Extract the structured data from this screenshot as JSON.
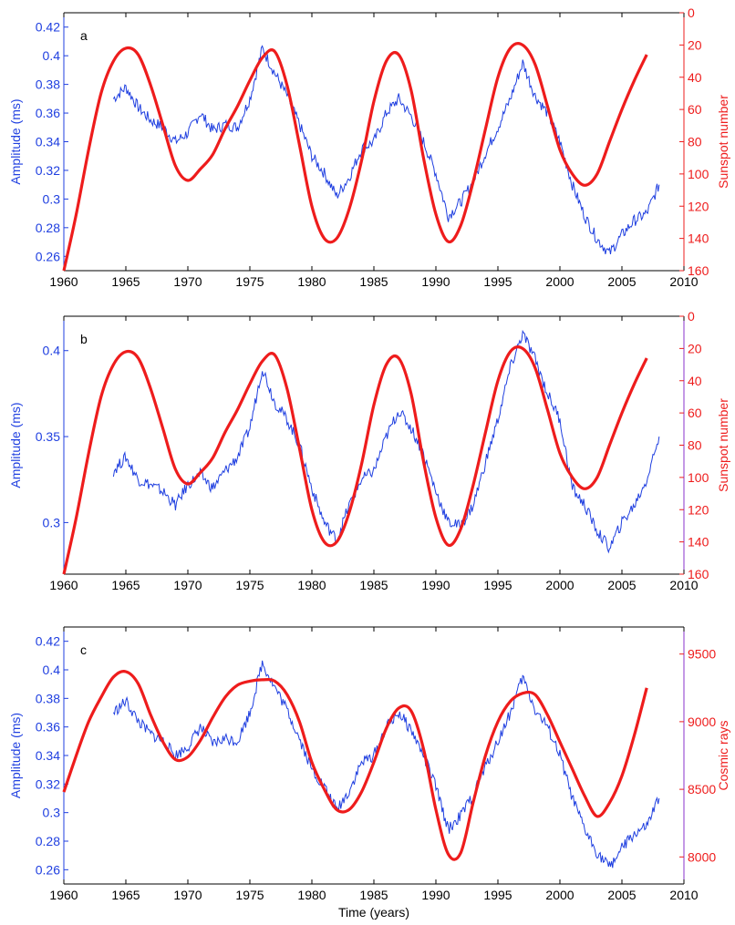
{
  "colors": {
    "blue": "#1f3fe0",
    "red": "#ee1c1c",
    "axis": "#000000",
    "purple": "#8833cc"
  },
  "chart_data": [
    {
      "type": "line",
      "panel_label": "a",
      "xlabel": "",
      "ylabel_left": "Amplitude (ms)",
      "ylabel_right": "Sunspot number",
      "xlim": [
        1960,
        2010
      ],
      "ylim_left": [
        0.25,
        0.43
      ],
      "ylim_right_reversed": [
        0,
        160
      ],
      "x_ticks": [
        "1960",
        "1965",
        "1970",
        "1975",
        "1980",
        "1985",
        "1990",
        "1995",
        "2000",
        "2005",
        "2010"
      ],
      "y_ticks_left": [
        "0.26",
        "0.28",
        "0.3",
        "0.32",
        "0.34",
        "0.36",
        "0.38",
        "0.4",
        "0.42"
      ],
      "y_ticks_right": [
        "0",
        "20",
        "40",
        "60",
        "80",
        "100",
        "120",
        "140",
        "160"
      ],
      "series": [
        {
          "name": "Amplitude (ms)",
          "axis": "left",
          "color": "#1f3fe0",
          "x": [
            1964,
            1965,
            1966,
            1967,
            1968,
            1969,
            1970,
            1971,
            1972,
            1973,
            1974,
            1975,
            1976,
            1977,
            1978,
            1979,
            1980,
            1981,
            1982,
            1983,
            1984,
            1985,
            1986,
            1987,
            1988,
            1989,
            1990,
            1991,
            1992,
            1993,
            1994,
            1995,
            1996,
            1997,
            1998,
            1999,
            2000,
            2001,
            2002,
            2003,
            2004,
            2005,
            2006,
            2007,
            2008
          ],
          "y": [
            0.37,
            0.378,
            0.364,
            0.355,
            0.35,
            0.34,
            0.346,
            0.36,
            0.348,
            0.352,
            0.35,
            0.37,
            0.405,
            0.388,
            0.372,
            0.352,
            0.33,
            0.318,
            0.302,
            0.315,
            0.335,
            0.34,
            0.36,
            0.37,
            0.358,
            0.34,
            0.318,
            0.288,
            0.298,
            0.312,
            0.332,
            0.35,
            0.37,
            0.395,
            0.372,
            0.36,
            0.34,
            0.31,
            0.288,
            0.272,
            0.262,
            0.275,
            0.285,
            0.29,
            0.31
          ]
        },
        {
          "name": "Sunspot number",
          "axis": "right",
          "color": "#ee1c1c",
          "x": [
            1960,
            1961,
            1962,
            1963,
            1964,
            1965,
            1966,
            1967,
            1968,
            1969,
            1970,
            1971,
            1972,
            1973,
            1974,
            1975,
            1976,
            1977,
            1978,
            1979,
            1980,
            1981,
            1982,
            1983,
            1984,
            1985,
            1986,
            1987,
            1988,
            1989,
            1990,
            1991,
            1992,
            1993,
            1994,
            1995,
            1996,
            1997,
            1998,
            1999,
            2000,
            2001,
            2002,
            2003,
            2004,
            2005,
            2006,
            2007
          ],
          "y": [
            160,
            125,
            85,
            50,
            30,
            22,
            26,
            45,
            70,
            95,
            104,
            97,
            88,
            72,
            58,
            42,
            28,
            24,
            45,
            82,
            120,
            140,
            140,
            122,
            92,
            55,
            30,
            26,
            48,
            90,
            125,
            142,
            132,
            105,
            72,
            40,
            22,
            20,
            32,
            58,
            85,
            100,
            107,
            100,
            80,
            60,
            42,
            26
          ]
        }
      ]
    },
    {
      "type": "line",
      "panel_label": "b",
      "xlabel": "",
      "ylabel_left": "Amplitude (ms)",
      "ylabel_right": "Sunspot number",
      "xlim": [
        1960,
        2010
      ],
      "ylim_left": [
        0.27,
        0.42
      ],
      "ylim_right_reversed": [
        0,
        160
      ],
      "x_ticks": [
        "1960",
        "1965",
        "1970",
        "1975",
        "1980",
        "1985",
        "1990",
        "1995",
        "2000",
        "2005",
        "2010"
      ],
      "y_ticks_left": [
        "0.3",
        "0.35",
        "0.4"
      ],
      "y_ticks_right": [
        "0",
        "20",
        "40",
        "60",
        "80",
        "100",
        "120",
        "140",
        "160"
      ],
      "series": [
        {
          "name": "Amplitude (ms)",
          "axis": "left",
          "color": "#1f3fe0",
          "x": [
            1964,
            1965,
            1966,
            1967,
            1968,
            1969,
            1970,
            1971,
            1972,
            1973,
            1974,
            1975,
            1976,
            1977,
            1978,
            1979,
            1980,
            1981,
            1982,
            1983,
            1984,
            1985,
            1986,
            1987,
            1988,
            1989,
            1990,
            1991,
            1992,
            1993,
            1994,
            1995,
            1996,
            1997,
            1998,
            1999,
            2000,
            2001,
            2002,
            2003,
            2004,
            2005,
            2006,
            2007,
            2008
          ],
          "y": [
            0.33,
            0.338,
            0.325,
            0.322,
            0.318,
            0.31,
            0.322,
            0.328,
            0.32,
            0.33,
            0.338,
            0.355,
            0.39,
            0.37,
            0.36,
            0.345,
            0.32,
            0.3,
            0.29,
            0.31,
            0.325,
            0.33,
            0.35,
            0.365,
            0.355,
            0.34,
            0.318,
            0.3,
            0.298,
            0.31,
            0.335,
            0.36,
            0.39,
            0.41,
            0.395,
            0.375,
            0.36,
            0.32,
            0.31,
            0.295,
            0.285,
            0.3,
            0.31,
            0.325,
            0.35
          ]
        },
        {
          "name": "Sunspot number",
          "axis": "right",
          "color": "#ee1c1c",
          "x": [
            1960,
            1961,
            1962,
            1963,
            1964,
            1965,
            1966,
            1967,
            1968,
            1969,
            1970,
            1971,
            1972,
            1973,
            1974,
            1975,
            1976,
            1977,
            1978,
            1979,
            1980,
            1981,
            1982,
            1983,
            1984,
            1985,
            1986,
            1987,
            1988,
            1989,
            1990,
            1991,
            1992,
            1993,
            1994,
            1995,
            1996,
            1997,
            1998,
            1999,
            2000,
            2001,
            2002,
            2003,
            2004,
            2005,
            2006,
            2007
          ],
          "y": [
            160,
            125,
            85,
            50,
            30,
            22,
            26,
            45,
            70,
            95,
            104,
            97,
            88,
            72,
            58,
            42,
            28,
            24,
            45,
            82,
            120,
            140,
            140,
            122,
            92,
            55,
            30,
            26,
            48,
            90,
            125,
            142,
            132,
            105,
            72,
            40,
            22,
            20,
            32,
            58,
            85,
            100,
            107,
            100,
            80,
            60,
            42,
            26
          ]
        }
      ]
    },
    {
      "type": "line",
      "panel_label": "c",
      "xlabel": "Time (years)",
      "ylabel_left": "Amplitude (ms)",
      "ylabel_right": "Cosmic rays",
      "xlim": [
        1960,
        2010
      ],
      "ylim_left": [
        0.25,
        0.43
      ],
      "ylim_right": [
        7800,
        9700
      ],
      "x_ticks": [
        "1960",
        "1965",
        "1970",
        "1975",
        "1980",
        "1985",
        "1990",
        "1995",
        "2000",
        "2005",
        "2010"
      ],
      "y_ticks_left": [
        "0.26",
        "0.28",
        "0.3",
        "0.32",
        "0.34",
        "0.36",
        "0.38",
        "0.4",
        "0.42"
      ],
      "y_ticks_right": [
        "8000",
        "8500",
        "9000",
        "9500"
      ],
      "series": [
        {
          "name": "Amplitude (ms)",
          "axis": "left",
          "color": "#1f3fe0",
          "x": [
            1964,
            1965,
            1966,
            1967,
            1968,
            1969,
            1970,
            1971,
            1972,
            1973,
            1974,
            1975,
            1976,
            1977,
            1978,
            1979,
            1980,
            1981,
            1982,
            1983,
            1984,
            1985,
            1986,
            1987,
            1988,
            1989,
            1990,
            1991,
            1992,
            1993,
            1994,
            1995,
            1996,
            1997,
            1998,
            1999,
            2000,
            2001,
            2002,
            2003,
            2004,
            2005,
            2006,
            2007,
            2008
          ],
          "y": [
            0.37,
            0.378,
            0.364,
            0.355,
            0.35,
            0.34,
            0.346,
            0.36,
            0.348,
            0.352,
            0.35,
            0.37,
            0.405,
            0.388,
            0.372,
            0.352,
            0.33,
            0.318,
            0.302,
            0.315,
            0.335,
            0.34,
            0.36,
            0.37,
            0.358,
            0.34,
            0.318,
            0.288,
            0.298,
            0.312,
            0.332,
            0.35,
            0.37,
            0.395,
            0.372,
            0.36,
            0.34,
            0.31,
            0.288,
            0.272,
            0.262,
            0.275,
            0.285,
            0.29,
            0.31
          ]
        },
        {
          "name": "Cosmic rays",
          "axis": "right",
          "color": "#ee1c1c",
          "x": [
            1960,
            1961,
            1962,
            1963,
            1964,
            1965,
            1966,
            1967,
            1968,
            1969,
            1970,
            1971,
            1972,
            1973,
            1974,
            1975,
            1976,
            1977,
            1978,
            1979,
            1980,
            1981,
            1982,
            1983,
            1984,
            1985,
            1986,
            1987,
            1988,
            1989,
            1990,
            1991,
            1992,
            1993,
            1994,
            1995,
            1996,
            1997,
            1998,
            1999,
            2000,
            2001,
            2002,
            2003,
            2004,
            2005,
            2006,
            2007
          ],
          "y": [
            8480,
            8750,
            9000,
            9180,
            9330,
            9370,
            9280,
            9050,
            8850,
            8720,
            8740,
            8860,
            9030,
            9180,
            9270,
            9300,
            9310,
            9300,
            9200,
            9000,
            8700,
            8500,
            8350,
            8350,
            8480,
            8700,
            8950,
            9100,
            9080,
            8800,
            8350,
            8020,
            8030,
            8400,
            8750,
            9000,
            9150,
            9210,
            9200,
            9050,
            8850,
            8650,
            8450,
            8300,
            8400,
            8600,
            8900,
            9250
          ]
        }
      ]
    }
  ]
}
